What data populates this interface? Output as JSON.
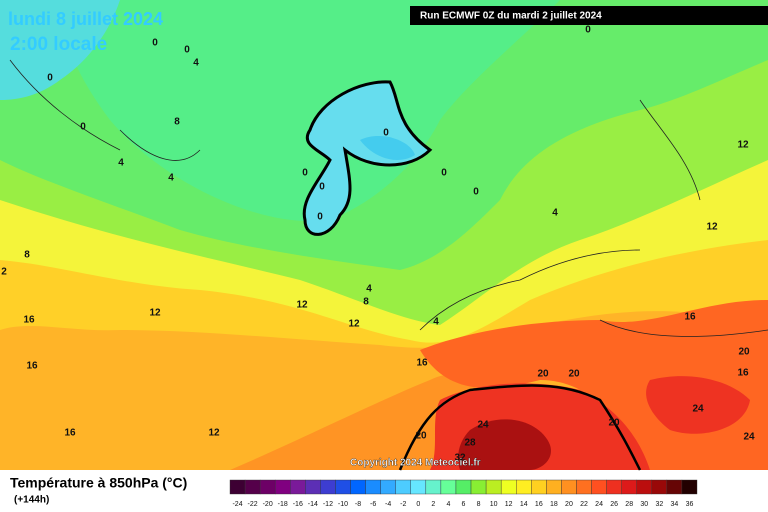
{
  "header": {
    "date": "lundi 8 juillet 2024",
    "time": "2:00 locale",
    "run": "Run ECMWF 0Z du mardi 2 juillet 2024"
  },
  "map": {
    "copyright": "Copyright 2024 Meteociel.fr",
    "contour_labels": [
      0,
      0,
      4,
      0,
      0,
      8,
      4,
      4,
      0,
      0,
      0,
      0,
      0,
      0,
      0,
      4,
      12,
      12,
      8,
      2,
      16,
      12,
      12,
      4,
      8,
      12,
      4,
      16,
      16,
      16,
      20,
      20,
      20,
      16,
      24,
      12,
      16,
      24,
      20,
      28,
      20,
      24,
      32
    ]
  },
  "legend": {
    "title": "Température à 850hPa (°C)",
    "lead": "(+144h)",
    "ticks": [
      -24,
      -22,
      -20,
      -18,
      -16,
      -14,
      -12,
      -10,
      -8,
      -6,
      -4,
      -2,
      0,
      2,
      4,
      6,
      8,
      10,
      12,
      14,
      16,
      18,
      20,
      22,
      24,
      26,
      28,
      30,
      32,
      34,
      36
    ],
    "colors": [
      "#3d0033",
      "#55004a",
      "#6d0066",
      "#800080",
      "#7a1a99",
      "#5c2fb5",
      "#3d3dd1",
      "#1f4fe6",
      "#0066ff",
      "#1a8cff",
      "#33aaff",
      "#4dccff",
      "#66e6ff",
      "#66f2cc",
      "#66ff99",
      "#55ee66",
      "#88ee33",
      "#bbee22",
      "#eeff22",
      "#ffee22",
      "#ffd020",
      "#ffb020",
      "#ff9020",
      "#ff7020",
      "#ff5020",
      "#ee3020",
      "#dd1a1a",
      "#bb0e0e",
      "#990808",
      "#660505",
      "#220000"
    ]
  }
}
